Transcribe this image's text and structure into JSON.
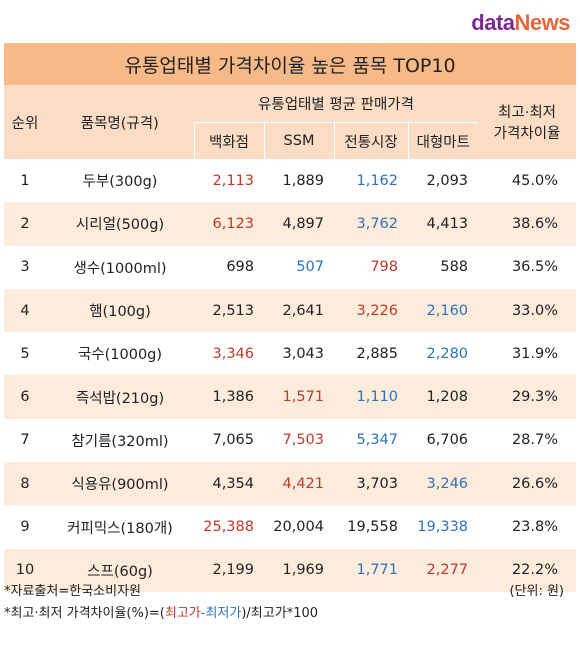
{
  "logo": {
    "part1": "data",
    "part2": "News"
  },
  "title": "유통업태별 가격차이율 높은 품목 TOP10",
  "headers": {
    "rank": "순위",
    "item": "품목명(규격)",
    "group": "유통업태별 평균 판매가격",
    "dept": "백화점",
    "ssm": "SSM",
    "trad": "전통시장",
    "mart": "대형마트",
    "ratio_line1": "최고·최저",
    "ratio_line2": "가격차이율"
  },
  "rows": [
    {
      "rank": "1",
      "item": "두부(300g)",
      "dept": "2,113",
      "ssm": "1,889",
      "trad": "1,162",
      "mart": "2,093",
      "ratio": "45.0%",
      "dept_c": "red",
      "ssm_c": "black",
      "trad_c": "blue",
      "mart_c": "black"
    },
    {
      "rank": "2",
      "item": "시리얼(500g)",
      "dept": "6,123",
      "ssm": "4,897",
      "trad": "3,762",
      "mart": "4,413",
      "ratio": "38.6%",
      "dept_c": "red",
      "ssm_c": "black",
      "trad_c": "blue",
      "mart_c": "black"
    },
    {
      "rank": "3",
      "item": "생수(1000ml)",
      "dept": "698",
      "ssm": "507",
      "trad": "798",
      "mart": "588",
      "ratio": "36.5%",
      "dept_c": "black",
      "ssm_c": "blue",
      "trad_c": "red",
      "mart_c": "black"
    },
    {
      "rank": "4",
      "item": "햄(100g)",
      "dept": "2,513",
      "ssm": "2,641",
      "trad": "3,226",
      "mart": "2,160",
      "ratio": "33.0%",
      "dept_c": "black",
      "ssm_c": "black",
      "trad_c": "red",
      "mart_c": "blue"
    },
    {
      "rank": "5",
      "item": "국수(1000g)",
      "dept": "3,346",
      "ssm": "3,043",
      "trad": "2,885",
      "mart": "2,280",
      "ratio": "31.9%",
      "dept_c": "red",
      "ssm_c": "black",
      "trad_c": "black",
      "mart_c": "blue"
    },
    {
      "rank": "6",
      "item": "즉석밥(210g)",
      "dept": "1,386",
      "ssm": "1,571",
      "trad": "1,110",
      "mart": "1,208",
      "ratio": "29.3%",
      "dept_c": "black",
      "ssm_c": "red",
      "trad_c": "blue",
      "mart_c": "black"
    },
    {
      "rank": "7",
      "item": "참기름(320ml)",
      "dept": "7,065",
      "ssm": "7,503",
      "trad": "5,347",
      "mart": "6,706",
      "ratio": "28.7%",
      "dept_c": "black",
      "ssm_c": "red",
      "trad_c": "blue",
      "mart_c": "black"
    },
    {
      "rank": "8",
      "item": "식용유(900ml)",
      "dept": "4,354",
      "ssm": "4,421",
      "trad": "3,703",
      "mart": "3,246",
      "ratio": "26.6%",
      "dept_c": "black",
      "ssm_c": "red",
      "trad_c": "black",
      "mart_c": "blue"
    },
    {
      "rank": "9",
      "item": "커피믹스(180개)",
      "dept": "25,388",
      "ssm": "20,004",
      "trad": "19,558",
      "mart": "19,338",
      "ratio": "23.8%",
      "dept_c": "red",
      "ssm_c": "black",
      "trad_c": "black",
      "mart_c": "blue"
    },
    {
      "rank": "10",
      "item": "스프(60g)",
      "dept": "2,199",
      "ssm": "1,969",
      "trad": "1,771",
      "mart": "2,277",
      "ratio": "22.2%",
      "dept_c": "black",
      "ssm_c": "black",
      "trad_c": "blue",
      "mart_c": "red"
    }
  ],
  "footer": {
    "source": "*자료출처=한국소비자원",
    "unit": "(단위: 원)",
    "formula_prefix": "*최고·최저 가격차이율(%)=(",
    "formula_max": "최고가",
    "formula_dash": "-",
    "formula_min": "최저가",
    "formula_suffix": ")/최고가*100"
  },
  "colors": {
    "red": "#c0392b",
    "blue": "#2e72b8",
    "header_bg": "#f7b988",
    "subheader_bg": "#fbdcc5",
    "alt_row_bg": "#fdebdc"
  }
}
